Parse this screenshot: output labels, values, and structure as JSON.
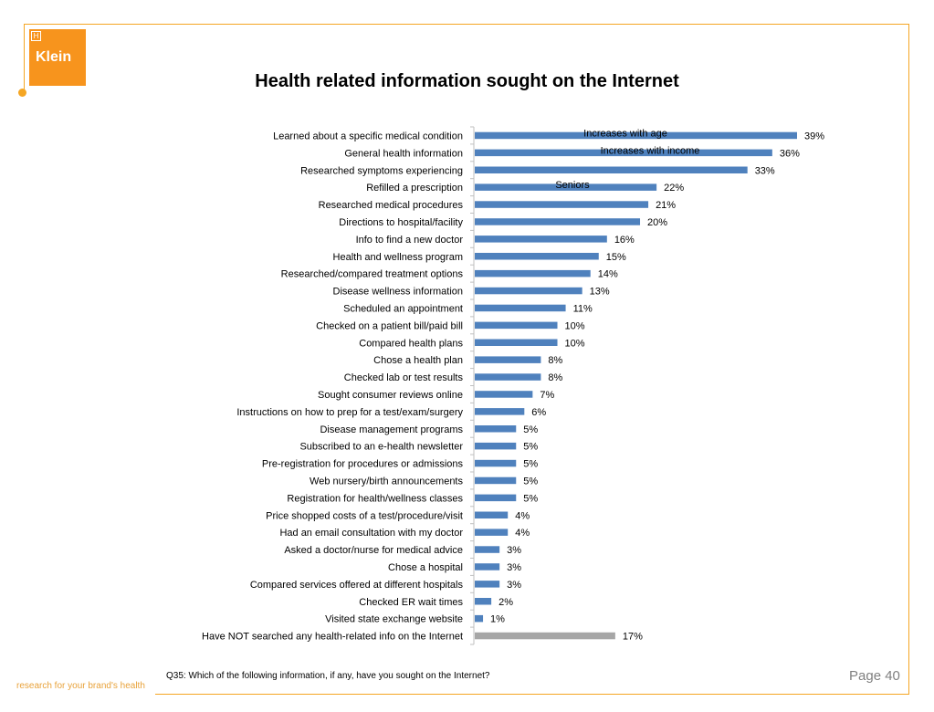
{
  "brand": {
    "logo_text": "Klein",
    "tagline": "research for your brand's health",
    "accent_color": "#F5A623"
  },
  "title": "Health related information sought on the Internet",
  "question": "Q35: Which of the following information, if any, have you sought on the Internet?",
  "page": "Page 40",
  "chart_data": {
    "type": "bar",
    "orientation": "horizontal",
    "title": "Health related information sought on the Internet",
    "categories": [
      "Learned about a specific medical condition",
      "General health information",
      "Researched symptoms experiencing",
      "Refilled a prescription",
      "Researched medical procedures",
      "Directions to hospital/facility",
      "Info to find a new doctor",
      "Health and wellness program",
      "Researched/compared treatment options",
      "Disease wellness information",
      "Scheduled an appointment",
      "Checked on a patient bill/paid bill",
      "Compared health plans",
      "Chose a health plan",
      "Checked lab or test results",
      "Sought consumer reviews online",
      "Instructions on how to prep for a test/exam/surgery",
      "Disease management programs",
      "Subscribed to an e-health newsletter",
      "Pre-registration for procedures or admissions",
      "Web nursery/birth announcements",
      "Registration for health/wellness classes",
      "Price shopped costs of a test/procedure/visit",
      "Had an email consultation with my doctor",
      "Asked a doctor/nurse for medical advice",
      "Chose a hospital",
      "Compared services offered at different hospitals",
      "Checked ER wait times",
      "Visited state exchange website",
      "Have NOT searched any health-related info on the Internet"
    ],
    "values": [
      39,
      36,
      33,
      22,
      21,
      20,
      16,
      15,
      14,
      13,
      11,
      10,
      10,
      8,
      8,
      7,
      6,
      5,
      5,
      5,
      5,
      5,
      4,
      4,
      3,
      3,
      3,
      2,
      1,
      17
    ],
    "value_labels": [
      "39%",
      "36%",
      "33%",
      "22%",
      "21%",
      "20%",
      "16%",
      "15%",
      "14%",
      "13%",
      "11%",
      "10%",
      "10%",
      "8%",
      "8%",
      "7%",
      "6%",
      "5%",
      "5%",
      "5%",
      "5%",
      "5%",
      "4%",
      "4%",
      "3%",
      "3%",
      "3%",
      "2%",
      "1%",
      "17%"
    ],
    "colors": {
      "default": "#4F81BD",
      "highlight": "#A6A6A6"
    },
    "highlight_index": 29,
    "annotations": [
      {
        "text": "Increases with age",
        "category_index": 0
      },
      {
        "text": "Increases with income",
        "category_index": 1
      },
      {
        "text": "Seniors",
        "category_index": 3
      }
    ],
    "xlim": [
      0,
      43
    ],
    "grid": false,
    "legend": "none"
  }
}
